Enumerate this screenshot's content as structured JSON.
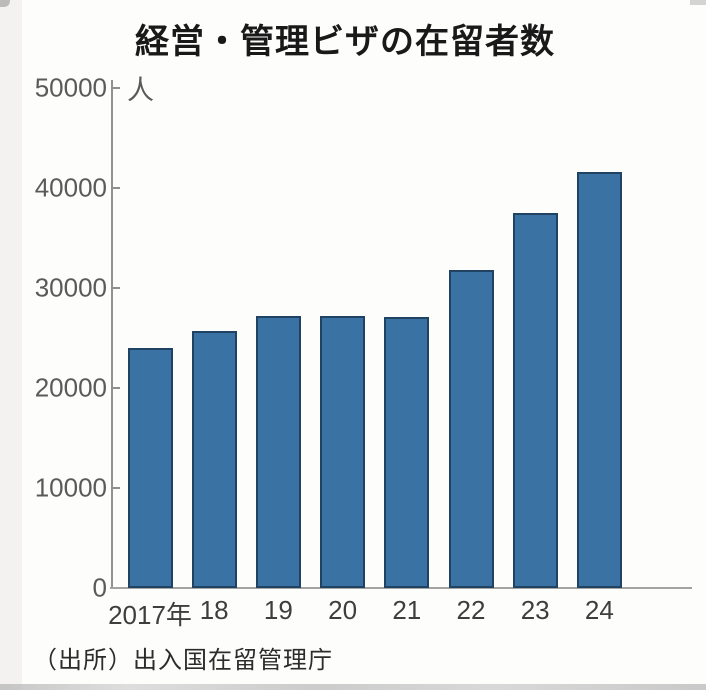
{
  "chart_data": {
    "type": "bar",
    "title": "経営・管理ビザの在留者数",
    "unit": "人",
    "categories": [
      "2017年",
      "18",
      "19",
      "20",
      "21",
      "22",
      "23",
      "24"
    ],
    "values": [
      24000,
      25700,
      27200,
      27200,
      27100,
      31800,
      37500,
      41600
    ],
    "xlabel": "",
    "ylabel": "人",
    "ylim": [
      0,
      50000
    ],
    "yticks": [
      0,
      10000,
      20000,
      30000,
      40000,
      50000
    ],
    "grid": false,
    "legend": "none",
    "bar_color": "#3a73a3",
    "bar_edge_color": "#18314d",
    "axis_color": "#919191",
    "source": "（出所）出入国在留管理庁"
  }
}
